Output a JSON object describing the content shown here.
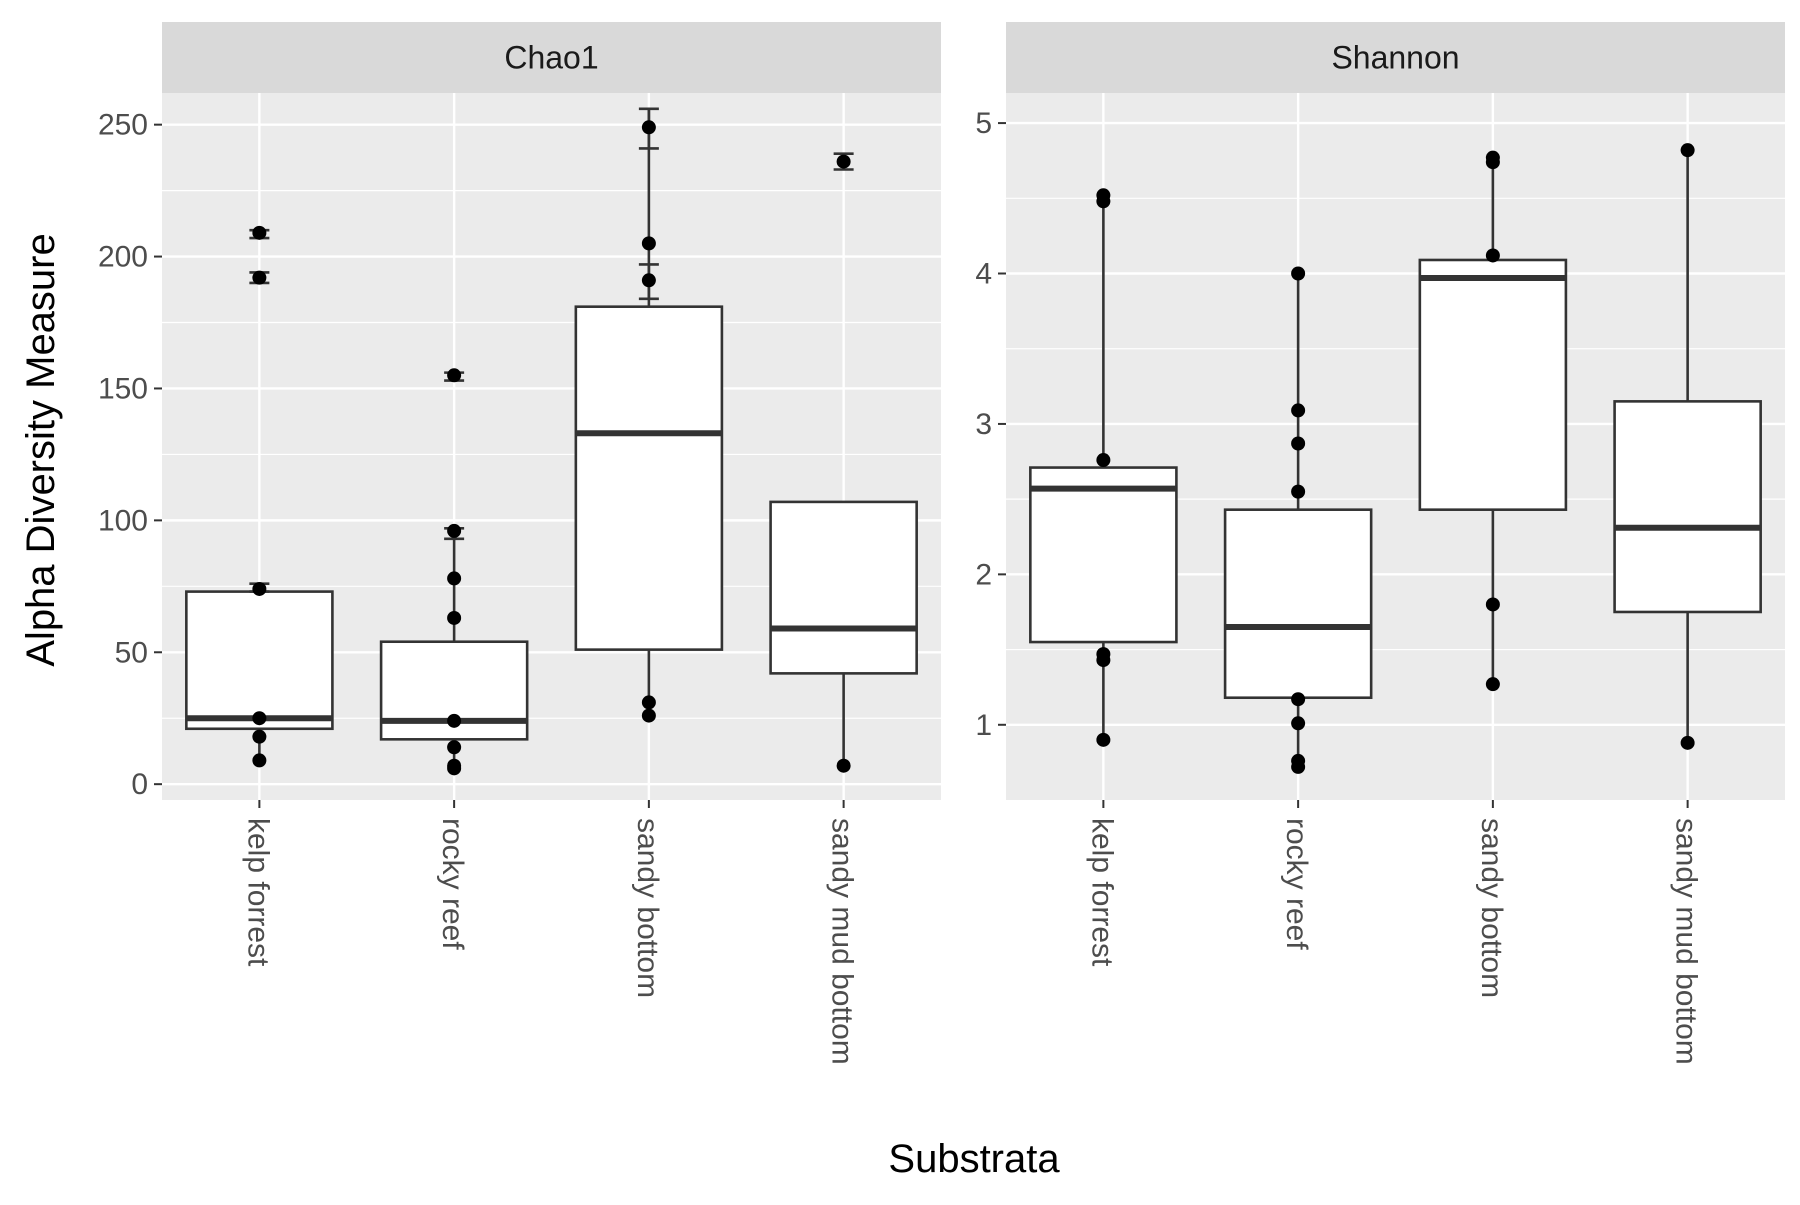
{
  "chart_data": {
    "type": "boxplot",
    "xlabel": "Substrata",
    "ylabel": "Alpha Diversity Measure",
    "categories": [
      "kelp forrest",
      "rocky reef",
      "sandy bottom",
      "sandy mud bottom"
    ],
    "panels": [
      {
        "name": "Chao1",
        "ylim": [
          -6,
          262
        ],
        "yticks": [
          0,
          50,
          100,
          150,
          200,
          250
        ],
        "boxes": [
          {
            "category": "kelp forrest",
            "q1": 21,
            "median": 25,
            "q3": 73,
            "whisker_low": 9,
            "whisker_high": 75
          },
          {
            "category": "rocky reef",
            "q1": 17,
            "median": 24,
            "q3": 54,
            "whisker_low": 6,
            "whisker_high": 96
          },
          {
            "category": "sandy bottom",
            "q1": 51,
            "median": 133,
            "q3": 181,
            "whisker_low": 26,
            "whisker_high": 256
          },
          {
            "category": "sandy mud bottom",
            "q1": 42,
            "median": 59,
            "q3": 107,
            "whisker_low": 7,
            "whisker_high": 107
          }
        ],
        "points": [
          {
            "category": "kelp forrest",
            "values": [
              9,
              18,
              25,
              74,
              192,
              209
            ]
          },
          {
            "category": "rocky reef",
            "values": [
              6,
              7,
              14,
              24,
              63,
              78,
              96,
              155
            ]
          },
          {
            "category": "sandy bottom",
            "values": [
              26,
              31,
              191,
              205,
              249
            ]
          },
          {
            "category": "sandy mud bottom",
            "values": [
              7,
              236
            ]
          }
        ],
        "error_bars": [
          {
            "category": "kelp forrest",
            "low": 73,
            "high": 76
          },
          {
            "category": "kelp forrest",
            "low": 190,
            "high": 194
          },
          {
            "category": "kelp forrest",
            "low": 207,
            "high": 210
          },
          {
            "category": "rocky reef",
            "low": 93,
            "high": 97
          },
          {
            "category": "rocky reef",
            "low": 153,
            "high": 156
          },
          {
            "category": "sandy bottom",
            "low": 184,
            "high": 197
          },
          {
            "category": "sandy bottom",
            "low": 241,
            "high": 256
          },
          {
            "category": "sandy mud bottom",
            "low": 233,
            "high": 239
          }
        ]
      },
      {
        "name": "Shannon",
        "ylim": [
          0.5,
          5.2
        ],
        "yticks": [
          1,
          2,
          3,
          4,
          5
        ],
        "boxes": [
          {
            "category": "kelp forrest",
            "q1": 1.55,
            "median": 2.57,
            "q3": 2.71,
            "whisker_low": 0.9,
            "whisker_high": 4.5
          },
          {
            "category": "rocky reef",
            "q1": 1.18,
            "median": 1.65,
            "q3": 2.43,
            "whisker_low": 0.72,
            "whisker_high": 4.0
          },
          {
            "category": "sandy bottom",
            "q1": 2.43,
            "median": 3.97,
            "q3": 4.09,
            "whisker_low": 1.27,
            "whisker_high": 4.76
          },
          {
            "category": "sandy mud bottom",
            "q1": 1.75,
            "median": 2.31,
            "q3": 3.15,
            "whisker_low": 0.88,
            "whisker_high": 4.82
          }
        ],
        "points": [
          {
            "category": "kelp forrest",
            "values": [
              0.9,
              1.43,
              1.47,
              2.76,
              4.48,
              4.52
            ]
          },
          {
            "category": "rocky reef",
            "values": [
              0.72,
              0.76,
              1.01,
              1.17,
              2.55,
              2.87,
              3.09,
              4.0
            ]
          },
          {
            "category": "sandy bottom",
            "values": [
              1.27,
              1.8,
              4.12,
              4.74,
              4.77
            ]
          },
          {
            "category": "sandy mud bottom",
            "values": [
              0.88,
              4.82
            ]
          }
        ],
        "error_bars": []
      }
    ],
    "grid": true,
    "legend": "none"
  }
}
